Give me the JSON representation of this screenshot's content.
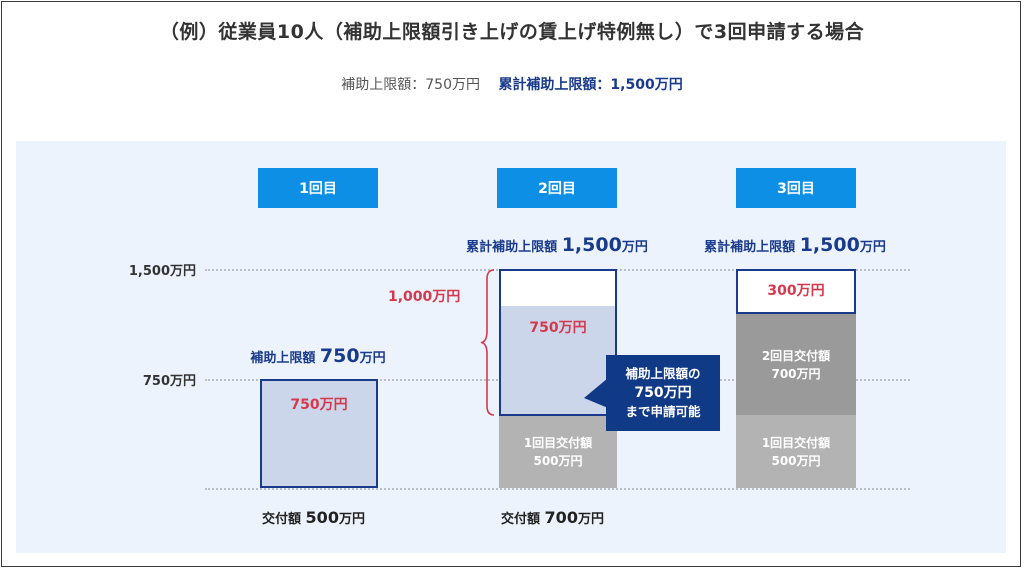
{
  "title": "（例）従業員10人（補助上限額引き上げの賃上げ特例無し）で3回申請する場合",
  "subtitle": {
    "limit_label": "補助上限額：750万円",
    "cumulative_label": "累計補助上限額：1,500万円"
  },
  "y_axis": {
    "ticks": [
      "1,500万円",
      "750万円"
    ]
  },
  "rounds": [
    {
      "label": "1回目",
      "cap_prefix": "補助上限額",
      "cap_value": "750",
      "cap_unit": "万円",
      "segment_available": "750万円",
      "footer_prefix": "交付額",
      "footer_value": "500",
      "footer_unit": "万円"
    },
    {
      "label": "2回目",
      "cap_prefix": "累計補助上限額",
      "cap_value": "1,500",
      "cap_unit": "万円",
      "segment_available": "750万円",
      "prior_grant_line1": "1回目交付額",
      "prior_grant_line2": "500万円",
      "brace_label": "1,000万円",
      "footer_prefix": "交付額",
      "footer_value": "700",
      "footer_unit": "万円",
      "callout": [
        "補助上限額の",
        "750万円",
        "まで申請可能"
      ]
    },
    {
      "label": "3回目",
      "cap_prefix": "累計補助上限額",
      "cap_value": "1,500",
      "cap_unit": "万円",
      "segment_remaining": "300万円",
      "round2_grant_line1": "2回目交付額",
      "round2_grant_line2": "700万円",
      "round1_grant_line1": "1回目交付額",
      "round1_grant_line2": "500万円"
    }
  ],
  "colors": {
    "round_label_bg": "#0e8fe6",
    "navy": "#1a3b8c",
    "red": "#d6384d",
    "available_fill": "#ccd6ea",
    "grant_light": "#b3b3b3",
    "grant_dark": "#9a9a9a",
    "panel_bg": "#ecf3fc"
  }
}
